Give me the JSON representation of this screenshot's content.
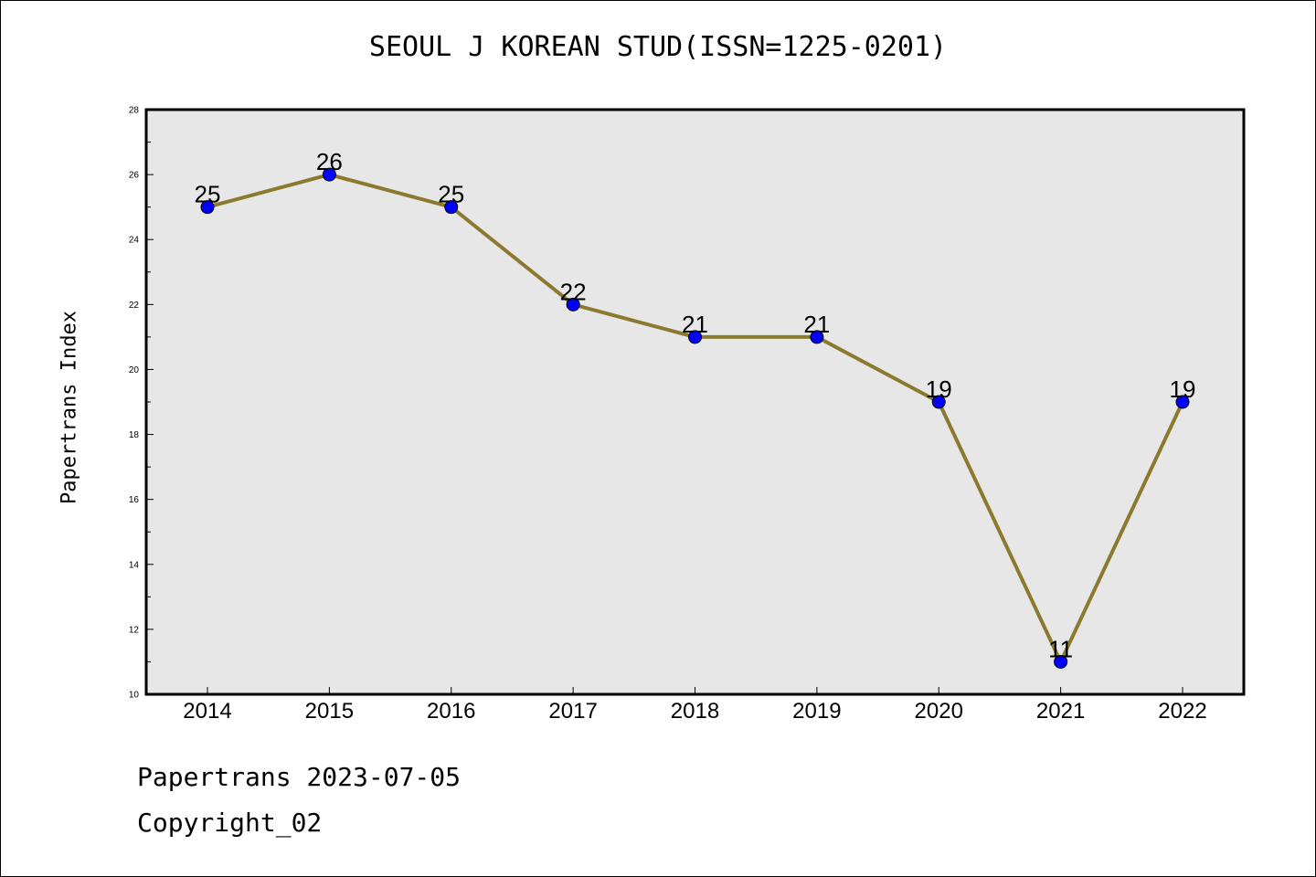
{
  "title": "SEOUL J KOREAN STUD(ISSN=1225-0201)",
  "footer": {
    "line1": "Papertrans 2023-07-05",
    "line2": "Copyright_02"
  },
  "colors": {
    "line": "#8B7A2E",
    "marker": "#0000FF",
    "plot_background": "#E7E7E7"
  },
  "chart_data": {
    "type": "line",
    "title": "SEOUL J KOREAN STUD(ISSN=1225-0201)",
    "xlabel": "",
    "ylabel": "Papertrans Index",
    "categories": [
      "2014",
      "2015",
      "2016",
      "2017",
      "2018",
      "2019",
      "2020",
      "2021",
      "2022"
    ],
    "values": [
      25,
      26,
      25,
      22,
      21,
      21,
      19,
      11,
      19
    ],
    "data_labels": [
      "25",
      "26",
      "25",
      "22",
      "21",
      "21",
      "19",
      "11",
      "19"
    ],
    "ylim": [
      10,
      28
    ],
    "yticks": [
      10,
      12,
      14,
      16,
      18,
      20,
      22,
      24,
      26,
      28
    ],
    "grid": false,
    "legend": "none"
  }
}
